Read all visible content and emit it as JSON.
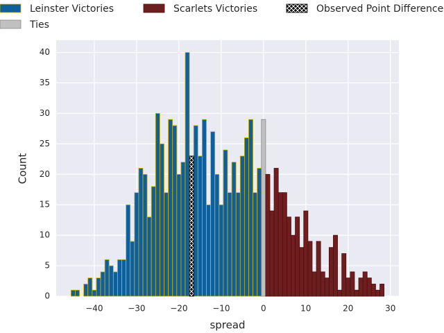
{
  "chart_data": {
    "type": "histogram",
    "xlabel": "spread",
    "ylabel": "Count",
    "xlim": [
      -49,
      32
    ],
    "ylim": [
      0,
      42
    ],
    "xticks": [
      {
        "value": -40,
        "label": "−40"
      },
      {
        "value": -30,
        "label": "−30"
      },
      {
        "value": -20,
        "label": "−20"
      },
      {
        "value": -10,
        "label": "−10"
      },
      0,
      10,
      20,
      30
    ],
    "yticks": [
      0,
      5,
      10,
      15,
      20,
      25,
      30,
      35,
      40
    ],
    "grid": true,
    "legend": "top",
    "series": [
      {
        "name": "Leinster Victories",
        "color": "#0f5f9b",
        "edgecolor": "#d4b000",
        "bins": [
          -45.5,
          -44.5,
          -43.5,
          -42.5,
          -41.5,
          -40.5,
          -39.5,
          -38.5,
          -37.5,
          -36.5,
          -35.5,
          -34.5,
          -33.5,
          -32.5,
          -31.5,
          -30.5,
          -29.5,
          -28.5,
          -27.5,
          -26.5,
          -25.5,
          -24.5,
          -23.5,
          -22.5,
          -21.5,
          -20.5,
          -19.5,
          -18.5,
          -17.5,
          -16.5,
          -15.5,
          -14.5,
          -13.5,
          -12.5,
          -11.5,
          -10.5,
          -9.5,
          -8.5,
          -7.5,
          -6.5,
          -5.5,
          -4.5,
          -3.5,
          -2.5,
          -1.5,
          -0.5
        ],
        "values": [
          1,
          1,
          0,
          2,
          3,
          1,
          3,
          4,
          6,
          5,
          4,
          6,
          6,
          15,
          9,
          17,
          21,
          20,
          13,
          18,
          30,
          25,
          17,
          29,
          28,
          20,
          22,
          40,
          23,
          28,
          23,
          29,
          15,
          27,
          20,
          15,
          24,
          17,
          22,
          17,
          23,
          26,
          29,
          17,
          21
        ]
      },
      {
        "name": "Ties",
        "color": "#c0c0c0",
        "edgecolor": "#888888",
        "bins": [
          -0.5,
          0.5
        ],
        "values": [
          29
        ]
      },
      {
        "name": "Scarlets Victories",
        "color": "#6e1e1e",
        "edgecolor": "#4a1010",
        "bins": [
          0.5,
          1.5,
          2.5,
          3.5,
          4.5,
          5.5,
          6.5,
          7.5,
          8.5,
          9.5,
          10.5,
          11.5,
          12.5,
          13.5,
          14.5,
          15.5,
          16.5,
          17.5,
          18.5,
          19.5,
          20.5,
          21.5,
          22.5,
          23.5,
          24.5,
          25.5,
          26.5,
          27.5,
          28.5
        ],
        "values": [
          20,
          14,
          21,
          17,
          17,
          13,
          10,
          13,
          8,
          14,
          9,
          4,
          9,
          4,
          3,
          8,
          10,
          1,
          7,
          3,
          4,
          1,
          3,
          4,
          3,
          2,
          1,
          2
        ]
      },
      {
        "name": "Observed Point Difference",
        "color": "hatch",
        "edgecolor": "#000000",
        "bins": [
          -17.5,
          -16.5
        ],
        "values": [
          23
        ]
      }
    ]
  }
}
